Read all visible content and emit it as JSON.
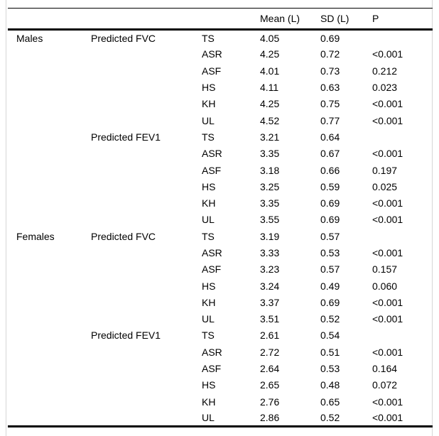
{
  "figure": {
    "type": "statistics-table",
    "background_color": "#ffffff",
    "rule_color": "#000000",
    "frame_border_color": "#d6d6d6",
    "text_color": "#000000"
  },
  "table": {
    "headers": [
      "",
      "",
      "",
      "Mean (L)",
      "SD (L)",
      "P"
    ],
    "groups": [
      {
        "sex": "Males",
        "measures": [
          {
            "name": "Predicted FVC",
            "rows": [
              {
                "equation": "TS",
                "mean": "4.05",
                "sd": "0.69",
                "p": ""
              },
              {
                "equation": "ASR",
                "mean": "4.25",
                "sd": "0.72",
                "p": "<0.001"
              },
              {
                "equation": "ASF",
                "mean": "4.01",
                "sd": "0.73",
                "p": "0.212"
              },
              {
                "equation": "HS",
                "mean": "4.11",
                "sd": "0.63",
                "p": "0.023"
              },
              {
                "equation": "KH",
                "mean": "4.25",
                "sd": "0.75",
                "p": "<0.001"
              },
              {
                "equation": "UL",
                "mean": "4.52",
                "sd": "0.77",
                "p": "<0.001"
              }
            ]
          },
          {
            "name": "Predicted FEV1",
            "rows": [
              {
                "equation": "TS",
                "mean": "3.21",
                "sd": "0.64",
                "p": ""
              },
              {
                "equation": "ASR",
                "mean": "3.35",
                "sd": "0.67",
                "p": "<0.001"
              },
              {
                "equation": "ASF",
                "mean": "3.18",
                "sd": "0.66",
                "p": "0.197"
              },
              {
                "equation": "HS",
                "mean": "3.25",
                "sd": "0.59",
                "p": "0.025"
              },
              {
                "equation": "KH",
                "mean": "3.35",
                "sd": "0.69",
                "p": "<0.001"
              },
              {
                "equation": "UL",
                "mean": "3.55",
                "sd": "0.69",
                "p": "<0.001"
              }
            ]
          }
        ]
      },
      {
        "sex": "Females",
        "measures": [
          {
            "name": "Predicted FVC",
            "rows": [
              {
                "equation": "TS",
                "mean": "3.19",
                "sd": "0.57",
                "p": ""
              },
              {
                "equation": "ASR",
                "mean": "3.33",
                "sd": "0.53",
                "p": "<0.001"
              },
              {
                "equation": "ASF",
                "mean": "3.23",
                "sd": "0.57",
                "p": "0.157"
              },
              {
                "equation": "HS",
                "mean": "3.24",
                "sd": "0.49",
                "p": "0.060"
              },
              {
                "equation": "KH",
                "mean": "3.37",
                "sd": "0.69",
                "p": "<0.001"
              },
              {
                "equation": "UL",
                "mean": "3.51",
                "sd": "0.52",
                "p": "<0.001"
              }
            ]
          },
          {
            "name": "Predicted FEV1",
            "rows": [
              {
                "equation": "TS",
                "mean": "2.61",
                "sd": "0.54",
                "p": ""
              },
              {
                "equation": "ASR",
                "mean": "2.72",
                "sd": "0.51",
                "p": "<0.001"
              },
              {
                "equation": "ASF",
                "mean": "2.64",
                "sd": "0.53",
                "p": "0.164"
              },
              {
                "equation": "HS",
                "mean": "2.65",
                "sd": "0.48",
                "p": "0.072"
              },
              {
                "equation": "KH",
                "mean": "2.76",
                "sd": "0.65",
                "p": "<0.001"
              },
              {
                "equation": "UL",
                "mean": "2.86",
                "sd": "0.52",
                "p": "<0.001"
              }
            ]
          }
        ]
      }
    ]
  }
}
